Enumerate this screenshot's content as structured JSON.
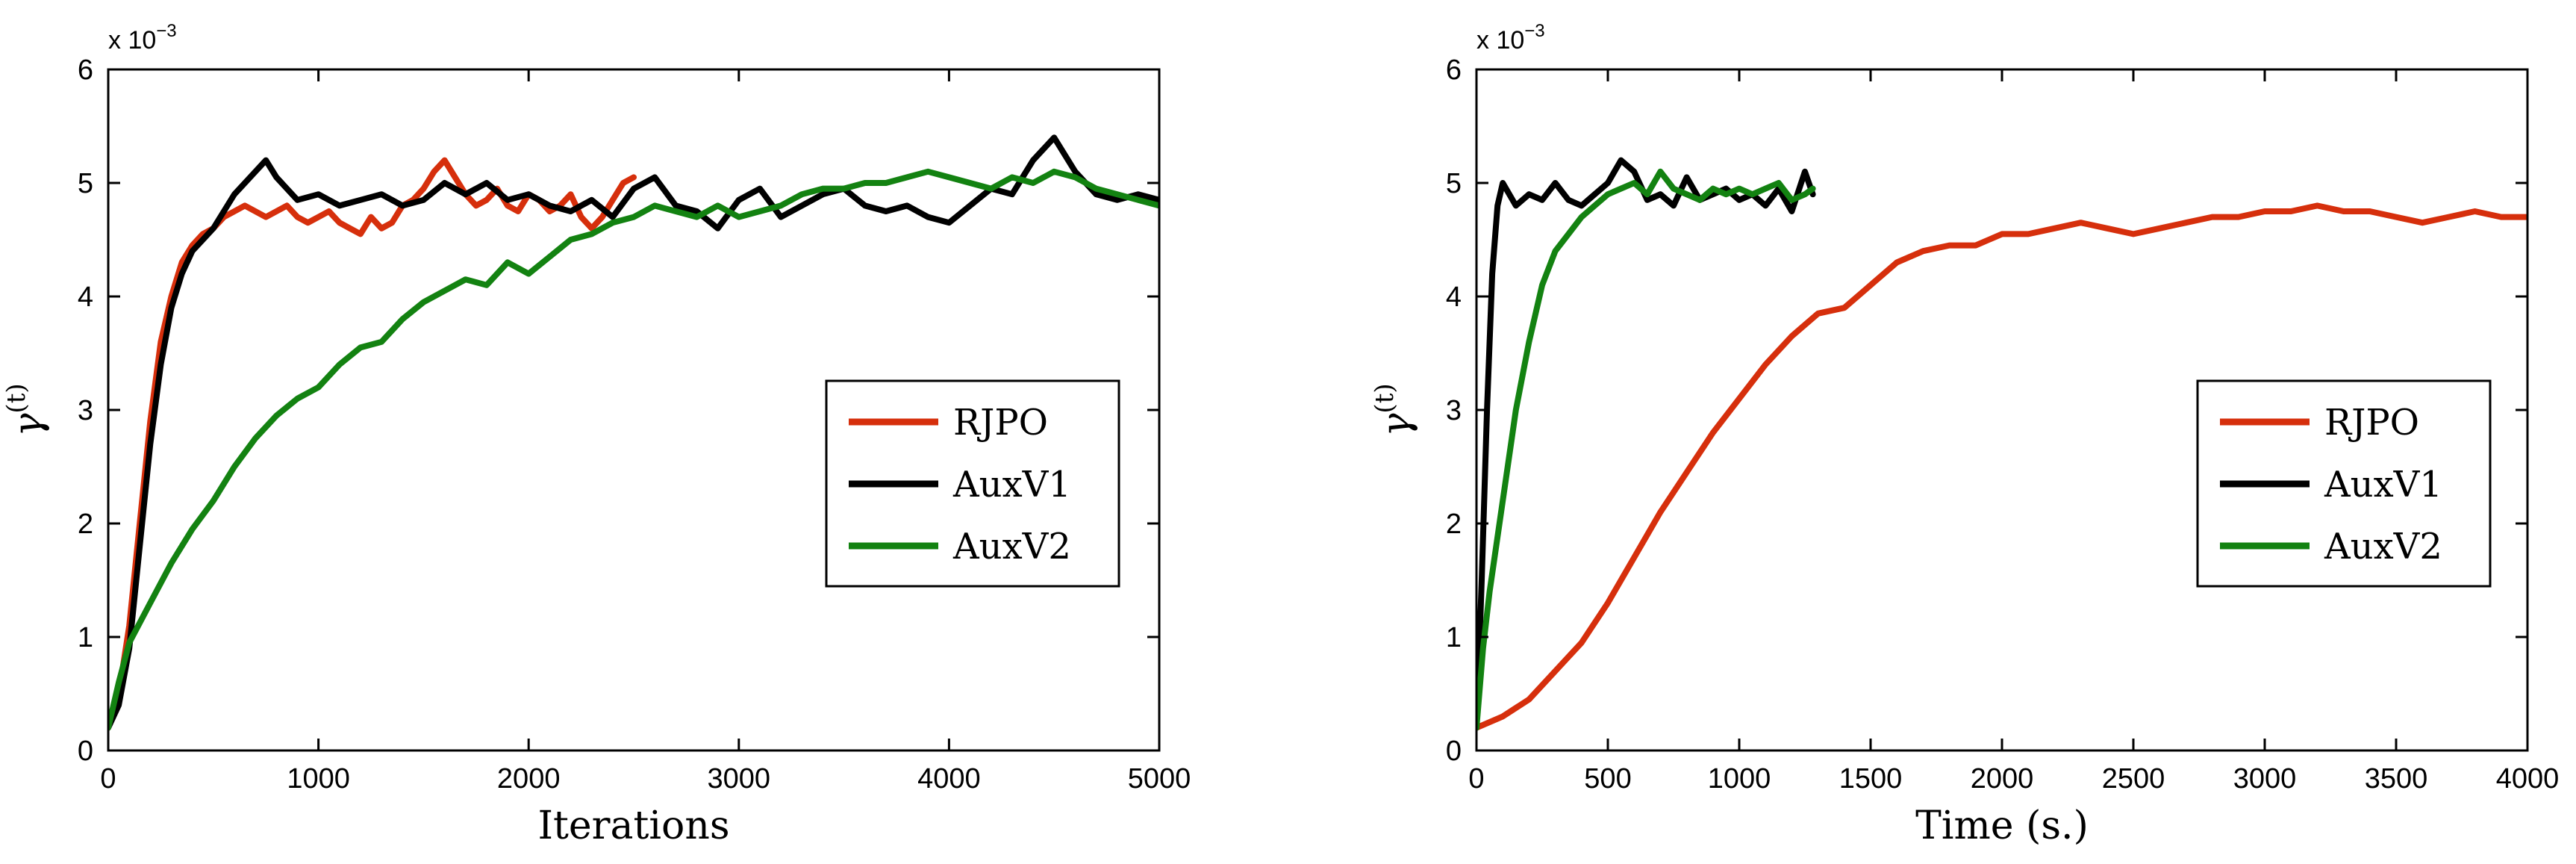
{
  "chart_data": [
    {
      "type": "line",
      "xlabel": "Iterations",
      "ylabel": "γ",
      "ylabel_sup": "(t)",
      "y_scale_label": "x 10",
      "y_scale_exponent": "−3",
      "xlim": [
        0,
        5000
      ],
      "ylim": [
        0,
        6
      ],
      "xticks": [
        0,
        1000,
        2000,
        3000,
        4000,
        5000
      ],
      "yticks": [
        0,
        1,
        2,
        3,
        4,
        5,
        6
      ],
      "legend_position": "center-right",
      "series": [
        {
          "name": "RJPO",
          "color": "#d62f0c",
          "x": [
            0,
            50,
            100,
            150,
            200,
            250,
            300,
            350,
            400,
            450,
            500,
            550,
            600,
            650,
            700,
            750,
            800,
            850,
            900,
            950,
            1000,
            1050,
            1100,
            1150,
            1200,
            1250,
            1300,
            1350,
            1400,
            1450,
            1500,
            1550,
            1600,
            1650,
            1700,
            1750,
            1800,
            1850,
            1900,
            1950,
            2000,
            2050,
            2100,
            2150,
            2200,
            2250,
            2300,
            2350,
            2400,
            2450,
            2500
          ],
          "values": [
            0.2,
            0.5,
            1.1,
            2.0,
            2.9,
            3.6,
            4.0,
            4.3,
            4.45,
            4.55,
            4.6,
            4.7,
            4.75,
            4.8,
            4.75,
            4.7,
            4.75,
            4.8,
            4.7,
            4.65,
            4.7,
            4.75,
            4.65,
            4.6,
            4.55,
            4.7,
            4.6,
            4.65,
            4.8,
            4.85,
            4.95,
            5.1,
            5.2,
            5.05,
            4.9,
            4.8,
            4.85,
            4.95,
            4.8,
            4.75,
            4.9,
            4.85,
            4.75,
            4.8,
            4.9,
            4.7,
            4.6,
            4.7,
            4.85,
            5.0,
            5.05
          ]
        },
        {
          "name": "AuxV1",
          "color": "#000000",
          "x": [
            0,
            50,
            100,
            150,
            200,
            250,
            300,
            350,
            400,
            450,
            500,
            600,
            700,
            750,
            800,
            900,
            1000,
            1100,
            1200,
            1300,
            1400,
            1500,
            1600,
            1700,
            1800,
            1900,
            2000,
            2100,
            2200,
            2300,
            2400,
            2500,
            2600,
            2700,
            2800,
            2900,
            3000,
            3100,
            3200,
            3300,
            3400,
            3500,
            3600,
            3700,
            3800,
            3900,
            4000,
            4100,
            4200,
            4300,
            4400,
            4500,
            4600,
            4700,
            4800,
            4900,
            5000
          ],
          "values": [
            0.2,
            0.4,
            0.9,
            1.8,
            2.7,
            3.4,
            3.9,
            4.2,
            4.4,
            4.5,
            4.6,
            4.9,
            5.1,
            5.2,
            5.05,
            4.85,
            4.9,
            4.8,
            4.85,
            4.9,
            4.8,
            4.85,
            5.0,
            4.9,
            5.0,
            4.85,
            4.9,
            4.8,
            4.75,
            4.85,
            4.7,
            4.95,
            5.05,
            4.8,
            4.75,
            4.6,
            4.85,
            4.95,
            4.7,
            4.8,
            4.9,
            4.95,
            4.8,
            4.75,
            4.8,
            4.7,
            4.65,
            4.8,
            4.95,
            4.9,
            5.2,
            5.4,
            5.1,
            4.9,
            4.85,
            4.9,
            4.85
          ]
        },
        {
          "name": "AuxV2",
          "color": "#138211",
          "x": [
            0,
            50,
            100,
            200,
            300,
            400,
            500,
            600,
            700,
            800,
            900,
            1000,
            1100,
            1200,
            1300,
            1400,
            1500,
            1600,
            1700,
            1800,
            1900,
            2000,
            2100,
            2200,
            2300,
            2400,
            2500,
            2600,
            2700,
            2800,
            2900,
            3000,
            3100,
            3200,
            3300,
            3400,
            3500,
            3600,
            3700,
            3800,
            3900,
            4000,
            4100,
            4200,
            4300,
            4400,
            4500,
            4600,
            4700,
            4800,
            4900,
            5000
          ],
          "values": [
            0.2,
            0.6,
            0.95,
            1.3,
            1.65,
            1.95,
            2.2,
            2.5,
            2.75,
            2.95,
            3.1,
            3.2,
            3.4,
            3.55,
            3.6,
            3.8,
            3.95,
            4.05,
            4.15,
            4.1,
            4.3,
            4.2,
            4.35,
            4.5,
            4.55,
            4.65,
            4.7,
            4.8,
            4.75,
            4.7,
            4.8,
            4.7,
            4.75,
            4.8,
            4.9,
            4.95,
            4.95,
            5.0,
            5.0,
            5.05,
            5.1,
            5.05,
            5.0,
            4.95,
            5.05,
            5.0,
            5.1,
            5.05,
            4.95,
            4.9,
            4.85,
            4.8
          ]
        }
      ]
    },
    {
      "type": "line",
      "xlabel": "Time (s.)",
      "ylabel": "γ",
      "ylabel_sup": "(t)",
      "y_scale_label": "x 10",
      "y_scale_exponent": "−3",
      "xlim": [
        0,
        4000
      ],
      "ylim": [
        0,
        6
      ],
      "xticks": [
        0,
        500,
        1000,
        1500,
        2000,
        2500,
        3000,
        3500,
        4000
      ],
      "yticks": [
        0,
        1,
        2,
        3,
        4,
        5,
        6
      ],
      "legend_position": "center-right",
      "series": [
        {
          "name": "RJPO",
          "color": "#d62f0c",
          "x": [
            0,
            100,
            200,
            300,
            400,
            500,
            600,
            700,
            800,
            900,
            1000,
            1100,
            1200,
            1300,
            1400,
            1500,
            1600,
            1700,
            1800,
            1900,
            2000,
            2100,
            2200,
            2300,
            2400,
            2500,
            2600,
            2700,
            2800,
            2900,
            3000,
            3100,
            3200,
            3300,
            3400,
            3500,
            3600,
            3700,
            3800,
            3900,
            4000
          ],
          "values": [
            0.2,
            0.3,
            0.45,
            0.7,
            0.95,
            1.3,
            1.7,
            2.1,
            2.45,
            2.8,
            3.1,
            3.4,
            3.65,
            3.85,
            3.9,
            4.1,
            4.3,
            4.4,
            4.45,
            4.45,
            4.55,
            4.55,
            4.6,
            4.65,
            4.6,
            4.55,
            4.6,
            4.65,
            4.7,
            4.7,
            4.75,
            4.75,
            4.8,
            4.75,
            4.75,
            4.7,
            4.65,
            4.7,
            4.75,
            4.7,
            4.7
          ]
        },
        {
          "name": "AuxV1",
          "color": "#000000",
          "x": [
            0,
            20,
            40,
            60,
            80,
            100,
            150,
            200,
            250,
            300,
            350,
            400,
            450,
            500,
            550,
            600,
            650,
            700,
            750,
            800,
            850,
            900,
            950,
            1000,
            1050,
            1100,
            1150,
            1200,
            1250,
            1280
          ],
          "values": [
            0.2,
            1.5,
            3.0,
            4.2,
            4.8,
            5.0,
            4.8,
            4.9,
            4.85,
            5.0,
            4.85,
            4.8,
            4.9,
            5.0,
            5.2,
            5.1,
            4.85,
            4.9,
            4.8,
            5.05,
            4.85,
            4.9,
            4.95,
            4.85,
            4.9,
            4.8,
            4.95,
            4.75,
            5.1,
            4.9
          ]
        },
        {
          "name": "AuxV2",
          "color": "#138211",
          "x": [
            0,
            25,
            50,
            75,
            100,
            150,
            200,
            250,
            300,
            350,
            400,
            450,
            500,
            550,
            600,
            650,
            700,
            750,
            800,
            850,
            900,
            950,
            1000,
            1050,
            1100,
            1150,
            1200,
            1250,
            1280
          ],
          "values": [
            0.2,
            0.9,
            1.4,
            1.8,
            2.2,
            3.0,
            3.6,
            4.1,
            4.4,
            4.55,
            4.7,
            4.8,
            4.9,
            4.95,
            5.0,
            4.9,
            5.1,
            4.95,
            4.9,
            4.85,
            4.95,
            4.9,
            4.95,
            4.9,
            4.95,
            5.0,
            4.85,
            4.9,
            4.95
          ]
        }
      ]
    }
  ]
}
